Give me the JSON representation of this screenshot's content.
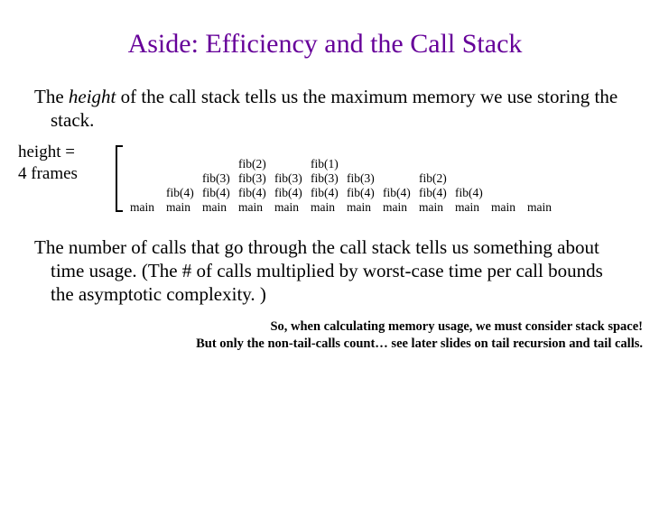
{
  "title": {
    "text": "Aside: Efficiency and the Call Stack",
    "color": "#660099",
    "fontsize": 30
  },
  "para1": {
    "prefix": "The ",
    "italic": "height",
    "suffix": " of the call stack tells us the maximum memory we use storing the stack."
  },
  "heightLabel": {
    "line1": "height =",
    "line2": "4 frames"
  },
  "stack": {
    "maxHeight": 4,
    "cellFontSize": 13.5,
    "columns": [
      [
        "main"
      ],
      [
        "fib(4)",
        "main"
      ],
      [
        "fib(3)",
        "fib(4)",
        "main"
      ],
      [
        "fib(2)",
        "fib(3)",
        "fib(4)",
        "main"
      ],
      [
        "fib(3)",
        "fib(4)",
        "main"
      ],
      [
        "fib(1)",
        "fib(3)",
        "fib(4)",
        "main"
      ],
      [
        "fib(3)",
        "fib(4)",
        "main"
      ],
      [
        "fib(4)",
        "main"
      ],
      [
        "fib(2)",
        "fib(4)",
        "main"
      ],
      [
        "fib(4)",
        "main"
      ],
      [
        "main"
      ],
      [
        "main"
      ]
    ]
  },
  "para2": "The number of calls that go through the call stack tells us something about time usage.  (The # of calls multiplied by worst-case time per call bounds the asymptotic complexity. )",
  "footnote": {
    "line1": "So, when calculating memory usage, we must consider stack space!",
    "line2": "But only the non-tail-calls count… see later slides on tail recursion and tail calls."
  },
  "colors": {
    "titleColor": "#660099",
    "textColor": "#000000",
    "background": "#ffffff"
  }
}
